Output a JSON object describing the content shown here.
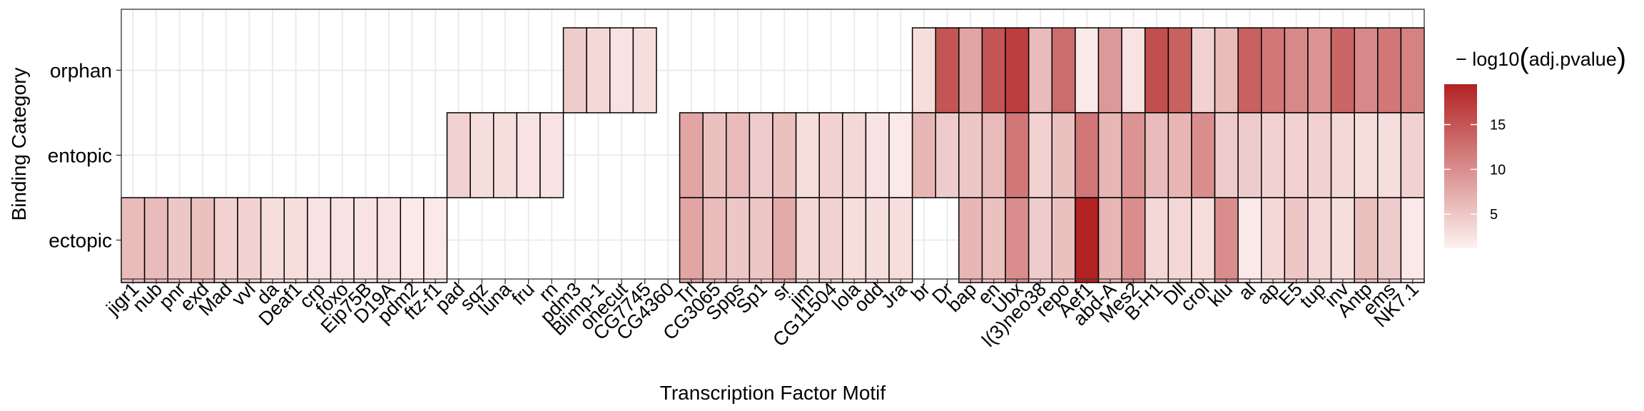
{
  "chart_data": {
    "type": "heatmap",
    "xlabel": "Transcription Factor Motif",
    "ylabel": "Binding Category",
    "x_categories": [
      "jigr1",
      "nub",
      "pnr",
      "exd",
      "Mad",
      "vvl",
      "da",
      "Deaf1",
      "crp",
      "foxo",
      "Eip75B",
      "D19A",
      "pdm2",
      "ftz-f1",
      "pad",
      "sqz",
      "luna",
      "fru",
      "rn",
      "pdm3",
      "Blimp-1",
      "onecut",
      "CG7745",
      "CG4360",
      "Trl",
      "CG3065",
      "Spps",
      "Sp1",
      "sr",
      "jim",
      "CG11504",
      "lola",
      "odd",
      "Jra",
      "br",
      "Dr",
      "bap",
      "en",
      "Ubx",
      "l(3)neo38",
      "repo",
      "Aef1",
      "abd-A",
      "Mes2",
      "B-H1",
      "Dll",
      "crol",
      "klu",
      "al",
      "ap",
      "E5",
      "tup",
      "inv",
      "Antp",
      "ems",
      "NK7.1"
    ],
    "y_categories": [
      "orphan",
      "entopic",
      "ectopic"
    ],
    "grid": true,
    "legend": {
      "title_prefix": "− log10",
      "title_inner": "adj.pvalue",
      "open_paren": "(",
      "close_paren": ")",
      "position": "right",
      "min": 1.2,
      "max": 19.5,
      "ticks": [
        5,
        10,
        15
      ],
      "low_color": "#fdf2f1",
      "high_color": "#b22222"
    },
    "values": {
      "orphan": [
        null,
        null,
        null,
        null,
        null,
        null,
        null,
        null,
        null,
        null,
        null,
        null,
        null,
        null,
        null,
        null,
        null,
        null,
        null,
        4.5,
        3.5,
        2.5,
        3.0,
        null,
        null,
        null,
        null,
        null,
        null,
        null,
        null,
        null,
        null,
        null,
        3.0,
        15.0,
        8.0,
        15.0,
        17.0,
        6.0,
        13.0,
        2.0,
        9.0,
        2.5,
        15.5,
        14.0,
        4.0,
        6.0,
        14.0,
        12.0,
        10.5,
        9.5,
        13.5,
        10.5,
        12.0,
        11.0
      ],
      "entopic": [
        null,
        null,
        null,
        null,
        null,
        null,
        null,
        null,
        null,
        null,
        null,
        null,
        null,
        null,
        4.0,
        3.0,
        3.0,
        2.5,
        2.5,
        null,
        null,
        null,
        null,
        null,
        8.0,
        5.5,
        6.0,
        4.5,
        5.5,
        3.0,
        4.0,
        3.5,
        2.5,
        2.0,
        6.5,
        4.5,
        5.0,
        6.0,
        12.0,
        4.0,
        5.5,
        12.0,
        6.5,
        9.5,
        6.0,
        6.5,
        10.0,
        4.5,
        4.5,
        4.0,
        4.0,
        4.0,
        3.5,
        3.0,
        3.0,
        4.0
      ],
      "ectopic": [
        6.0,
        6.0,
        5.0,
        5.5,
        4.0,
        4.0,
        3.0,
        3.0,
        2.5,
        2.5,
        2.5,
        2.5,
        2.0,
        2.0,
        null,
        null,
        null,
        null,
        null,
        null,
        null,
        null,
        null,
        null,
        8.0,
        6.0,
        5.0,
        5.0,
        7.5,
        3.5,
        4.0,
        3.0,
        3.0,
        3.0,
        null,
        null,
        6.5,
        5.5,
        10.0,
        4.5,
        5.5,
        19.5,
        6.5,
        10.0,
        3.5,
        3.5,
        3.0,
        10.0,
        2.0,
        3.5,
        5.0,
        3.5,
        3.0,
        5.5,
        4.5,
        2.0
      ]
    }
  }
}
